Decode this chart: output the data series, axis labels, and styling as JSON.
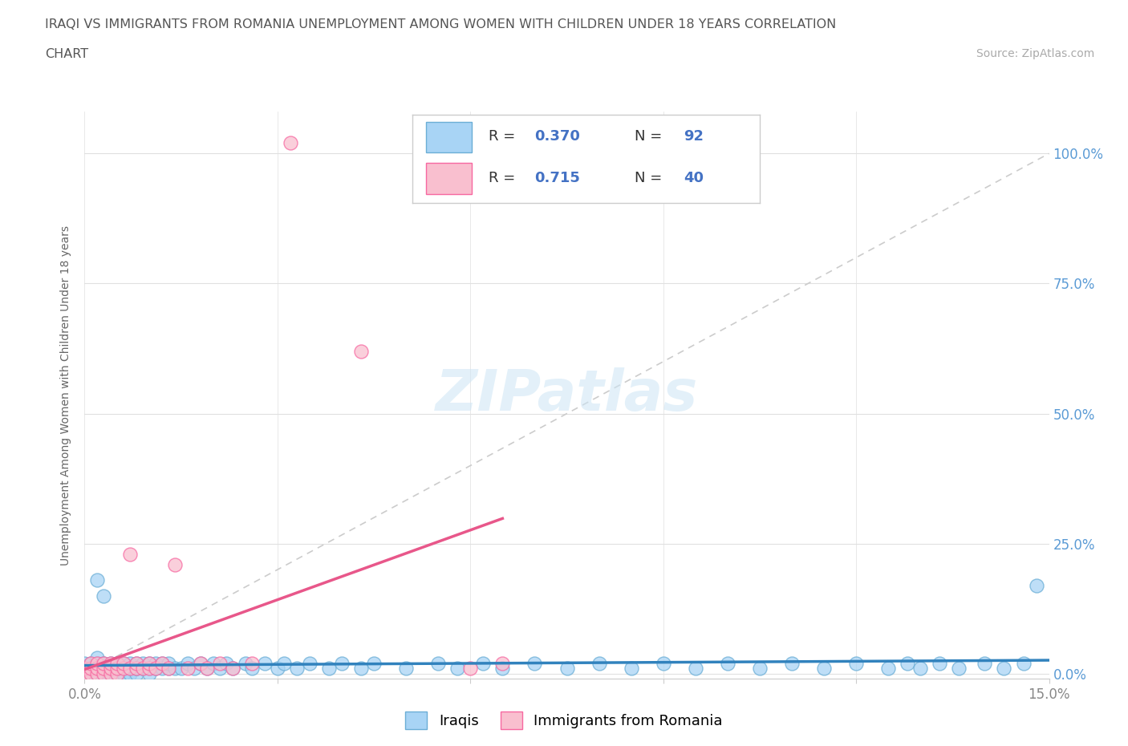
{
  "title_line1": "IRAQI VS IMMIGRANTS FROM ROMANIA UNEMPLOYMENT AMONG WOMEN WITH CHILDREN UNDER 18 YEARS CORRELATION",
  "title_line2": "CHART",
  "source": "Source: ZipAtlas.com",
  "ylabel": "Unemployment Among Women with Children Under 18 years",
  "y_ticks_labels": [
    "0.0%",
    "25.0%",
    "50.0%",
    "75.0%",
    "100.0%"
  ],
  "y_tick_vals": [
    0.0,
    0.25,
    0.5,
    0.75,
    1.0
  ],
  "x_range": [
    0.0,
    0.15
  ],
  "y_range": [
    -0.01,
    1.08
  ],
  "iraqis_color": "#A8D4F5",
  "romania_color": "#F9BFCF",
  "iraqis_edge_color": "#6BAED6",
  "romania_edge_color": "#F768A1",
  "iraqis_R": 0.37,
  "iraqis_N": 92,
  "romania_R": 0.715,
  "romania_N": 40,
  "legend_labels": [
    "Iraqis",
    "Immigrants from Romania"
  ],
  "watermark": "ZIPatlas",
  "background_color": "#ffffff",
  "grid_color": "#e0e0e0",
  "trend_color_iraqis": "#3182BD",
  "trend_color_romania": "#E8578A",
  "diagonal_color": "#cccccc",
  "title_color": "#555555",
  "right_ytick_color": "#5B9BD5",
  "stat_value_color": "#4472C4",
  "iraqis_x": [
    0.0,
    0.0,
    0.001,
    0.001,
    0.001,
    0.002,
    0.002,
    0.002,
    0.002,
    0.003,
    0.003,
    0.003,
    0.003,
    0.003,
    0.004,
    0.004,
    0.004,
    0.004,
    0.005,
    0.005,
    0.005,
    0.005,
    0.005,
    0.006,
    0.006,
    0.006,
    0.007,
    0.007,
    0.007,
    0.008,
    0.008,
    0.008,
    0.008,
    0.009,
    0.009,
    0.01,
    0.01,
    0.01,
    0.011,
    0.011,
    0.012,
    0.012,
    0.013,
    0.013,
    0.014,
    0.015,
    0.016,
    0.017,
    0.018,
    0.019,
    0.02,
    0.021,
    0.022,
    0.023,
    0.025,
    0.026,
    0.028,
    0.03,
    0.031,
    0.033,
    0.035,
    0.038,
    0.04,
    0.043,
    0.045,
    0.05,
    0.055,
    0.058,
    0.062,
    0.065,
    0.07,
    0.075,
    0.08,
    0.085,
    0.09,
    0.095,
    0.1,
    0.105,
    0.11,
    0.115,
    0.12,
    0.125,
    0.128,
    0.13,
    0.133,
    0.136,
    0.14,
    0.143,
    0.146,
    0.148,
    0.002,
    0.003
  ],
  "iraqis_y": [
    0.01,
    0.02,
    0.0,
    0.01,
    0.02,
    0.0,
    0.01,
    0.02,
    0.03,
    0.0,
    0.01,
    0.02,
    0.0,
    0.01,
    0.0,
    0.01,
    0.02,
    0.01,
    0.0,
    0.01,
    0.02,
    0.01,
    0.02,
    0.0,
    0.01,
    0.02,
    0.01,
    0.02,
    0.0,
    0.01,
    0.02,
    0.0,
    0.01,
    0.01,
    0.02,
    0.01,
    0.0,
    0.02,
    0.01,
    0.02,
    0.01,
    0.02,
    0.01,
    0.02,
    0.01,
    0.01,
    0.02,
    0.01,
    0.02,
    0.01,
    0.02,
    0.01,
    0.02,
    0.01,
    0.02,
    0.01,
    0.02,
    0.01,
    0.02,
    0.01,
    0.02,
    0.01,
    0.02,
    0.01,
    0.02,
    0.01,
    0.02,
    0.01,
    0.02,
    0.01,
    0.02,
    0.01,
    0.02,
    0.01,
    0.02,
    0.01,
    0.02,
    0.01,
    0.02,
    0.01,
    0.02,
    0.01,
    0.02,
    0.01,
    0.02,
    0.01,
    0.02,
    0.01,
    0.02,
    0.17,
    0.18,
    0.15
  ],
  "romania_x": [
    0.0,
    0.0,
    0.001,
    0.001,
    0.001,
    0.002,
    0.002,
    0.002,
    0.003,
    0.003,
    0.003,
    0.004,
    0.004,
    0.004,
    0.005,
    0.005,
    0.005,
    0.006,
    0.006,
    0.007,
    0.007,
    0.008,
    0.008,
    0.009,
    0.01,
    0.01,
    0.011,
    0.012,
    0.013,
    0.014,
    0.016,
    0.018,
    0.019,
    0.021,
    0.023,
    0.026,
    0.032,
    0.043,
    0.06,
    0.065
  ],
  "romania_y": [
    0.0,
    0.01,
    0.0,
    0.01,
    0.02,
    0.0,
    0.01,
    0.02,
    0.0,
    0.01,
    0.02,
    0.0,
    0.01,
    0.02,
    0.0,
    0.01,
    0.02,
    0.01,
    0.02,
    0.01,
    0.23,
    0.01,
    0.02,
    0.01,
    0.01,
    0.02,
    0.01,
    0.02,
    0.01,
    0.21,
    0.01,
    0.02,
    0.01,
    0.02,
    0.01,
    0.02,
    1.02,
    0.62,
    0.01,
    0.02
  ]
}
